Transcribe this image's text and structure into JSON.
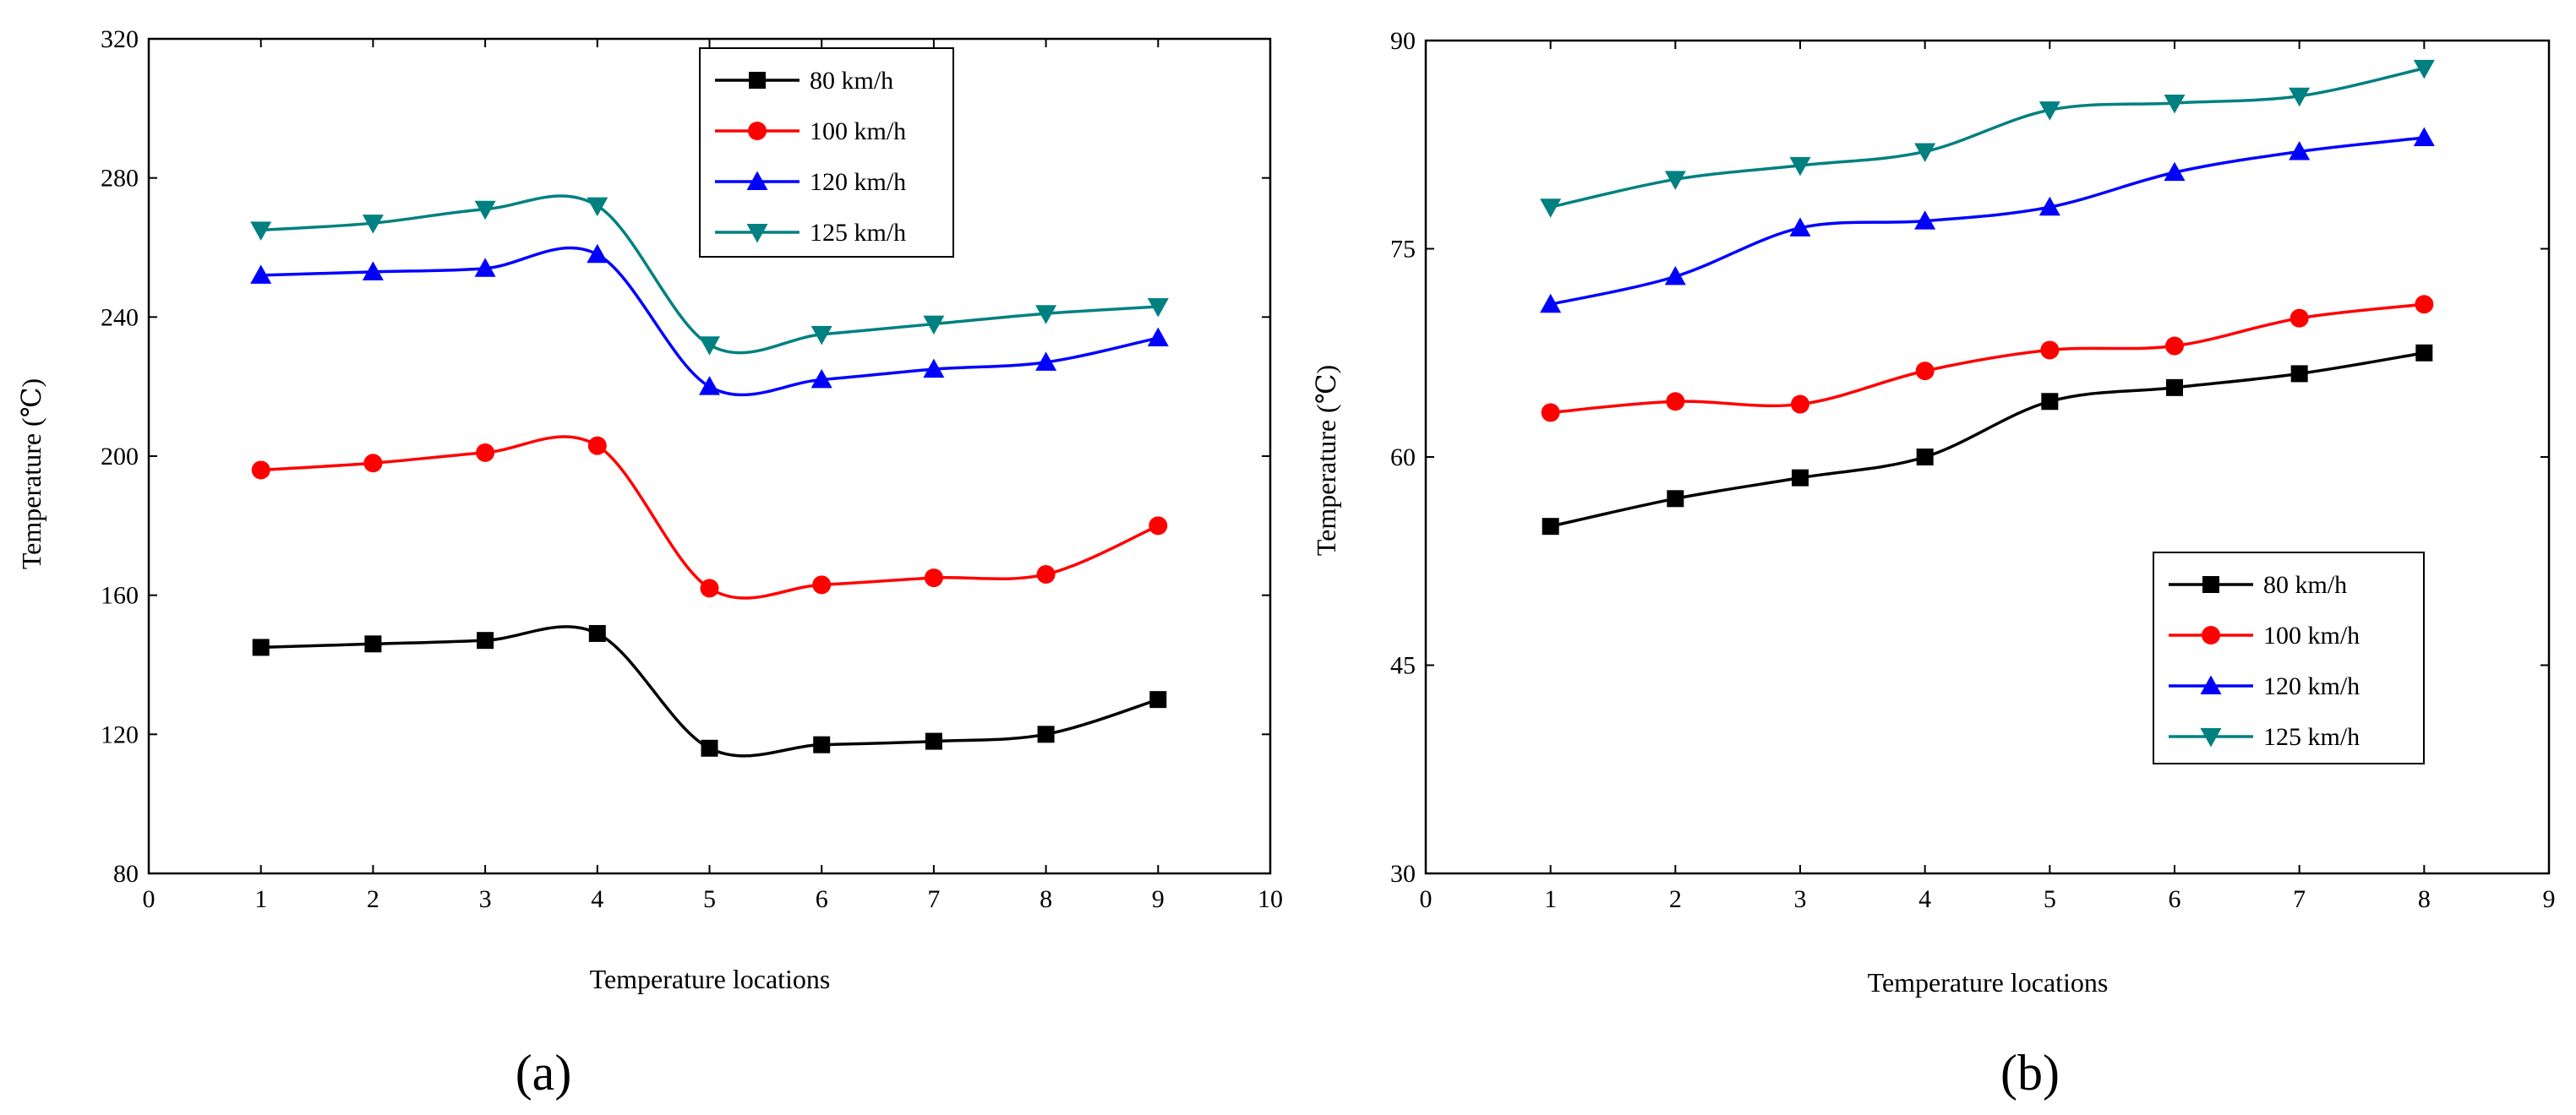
{
  "chart_data": [
    {
      "type": "line",
      "panel_label": "(a)",
      "xlabel": "Temperature locations",
      "ylabel": "Temperature (℃)",
      "xlim": [
        0,
        10
      ],
      "ylim": [
        80,
        320
      ],
      "xticks": [
        0,
        1,
        2,
        3,
        4,
        5,
        6,
        7,
        8,
        9,
        10
      ],
      "yticks": [
        80,
        120,
        160,
        200,
        240,
        280,
        320
      ],
      "grid": false,
      "legend_position": "top-center",
      "x": [
        1,
        2,
        3,
        4,
        5,
        6,
        7,
        8,
        9
      ],
      "series": [
        {
          "name": "80 km/h",
          "color": "#000000",
          "marker": "square",
          "values": [
            145,
            146,
            147,
            149,
            116,
            117,
            118,
            120,
            130
          ]
        },
        {
          "name": "100 km/h",
          "color": "#ff0000",
          "marker": "circle",
          "values": [
            196,
            198,
            201,
            203,
            162,
            163,
            165,
            166,
            180
          ]
        },
        {
          "name": "120 km/h",
          "color": "#0000ff",
          "marker": "triangle-up",
          "values": [
            252,
            253,
            254,
            258,
            220,
            222,
            225,
            227,
            234
          ]
        },
        {
          "name": "125 km/h",
          "color": "#008080",
          "marker": "triangle-down",
          "values": [
            265,
            267,
            271,
            272,
            232,
            235,
            238,
            241,
            243
          ]
        }
      ]
    },
    {
      "type": "line",
      "panel_label": "(b)",
      "xlabel": "Temperature locations",
      "ylabel": "Temperature (℃)",
      "xlim": [
        0,
        9
      ],
      "ylim": [
        30,
        90
      ],
      "xticks": [
        0,
        1,
        2,
        3,
        4,
        5,
        6,
        7,
        8,
        9
      ],
      "yticks": [
        30,
        45,
        60,
        75,
        90
      ],
      "grid": false,
      "legend_position": "bottom-right",
      "x": [
        1,
        2,
        3,
        4,
        5,
        6,
        7,
        8
      ],
      "series": [
        {
          "name": "80 km/h",
          "color": "#000000",
          "marker": "square",
          "values": [
            55,
            57,
            58.5,
            60,
            64,
            65,
            66,
            67.5
          ]
        },
        {
          "name": "100 km/h",
          "color": "#ff0000",
          "marker": "circle",
          "values": [
            63.2,
            64,
            63.8,
            66.2,
            67.7,
            68,
            70,
            71
          ]
        },
        {
          "name": "120 km/h",
          "color": "#0000ff",
          "marker": "triangle-up",
          "values": [
            71,
            73,
            76.5,
            77,
            78,
            80.5,
            82,
            83
          ]
        },
        {
          "name": "125 km/h",
          "color": "#008080",
          "marker": "triangle-down",
          "values": [
            78,
            80,
            81,
            82,
            85,
            85.5,
            86,
            88
          ]
        }
      ]
    }
  ]
}
